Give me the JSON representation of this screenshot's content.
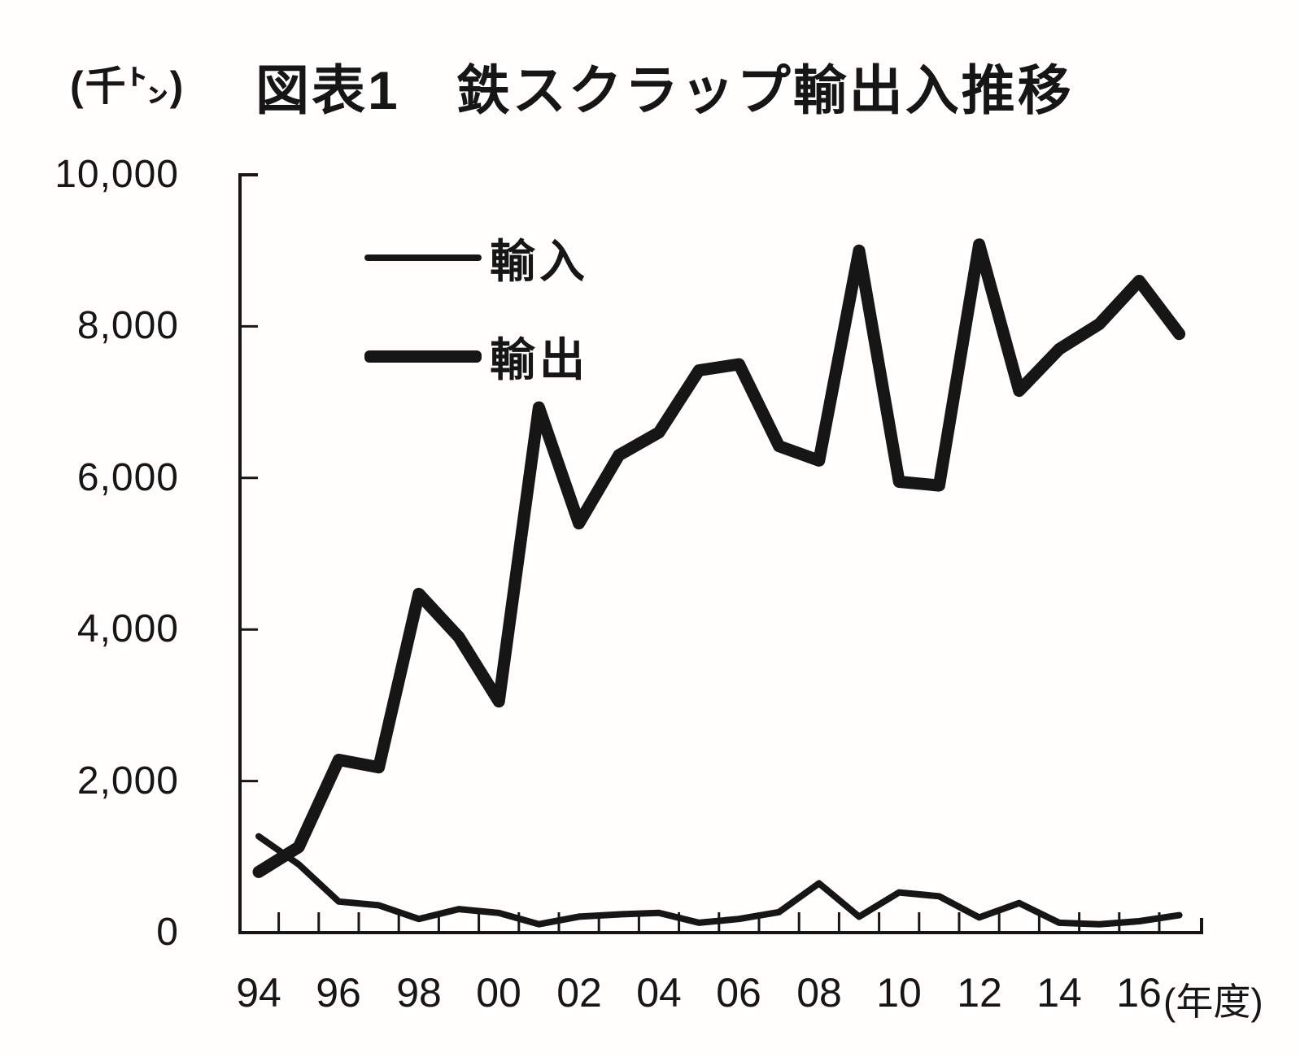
{
  "figure": {
    "unit_label": "(千㌧)",
    "title": "図表1　鉄スクラップ輸出入推移",
    "x_axis_unit_label": "(年度)"
  },
  "legend": [
    {
      "label": "輸入",
      "series": "import",
      "line_style": "thin"
    },
    {
      "label": "輸出",
      "series": "export",
      "line_style": "thick"
    }
  ],
  "chart_data": {
    "type": "line",
    "title": "図表1 鉄スクラップ輸出入推移",
    "unit": "千㌧",
    "xlabel": "(年度)",
    "x": [
      "94",
      "95",
      "96",
      "97",
      "98",
      "99",
      "00",
      "01",
      "02",
      "03",
      "04",
      "05",
      "06",
      "07",
      "08",
      "09",
      "10",
      "11",
      "12",
      "13",
      "14",
      "15",
      "16",
      "17"
    ],
    "x_tick_labels_shown": [
      "94",
      "96",
      "98",
      "00",
      "02",
      "04",
      "06",
      "08",
      "10",
      "12",
      "14",
      "16"
    ],
    "y_ticks": [
      0,
      2000,
      4000,
      6000,
      8000,
      10000
    ],
    "y_tick_labels": [
      "0",
      "2,000",
      "4,000",
      "6,000",
      "8,000",
      "10,000"
    ],
    "ylim": [
      0,
      10000
    ],
    "grid": false,
    "legend_position": "upper left inside plot",
    "line_color": "#161616",
    "series": [
      {
        "name": "輸入",
        "style": "thin",
        "values": [
          1270,
          900,
          410,
          360,
          180,
          310,
          260,
          110,
          210,
          240,
          260,
          130,
          180,
          270,
          650,
          210,
          530,
          480,
          200,
          390,
          130,
          110,
          150,
          230
        ]
      },
      {
        "name": "輸出",
        "style": "thick",
        "values": [
          800,
          1130,
          2280,
          2180,
          4470,
          3900,
          3050,
          6930,
          5400,
          6300,
          6600,
          7420,
          7500,
          6420,
          6230,
          9000,
          5950,
          5900,
          9080,
          7150,
          7700,
          8030,
          8600,
          7900
        ]
      }
    ]
  }
}
